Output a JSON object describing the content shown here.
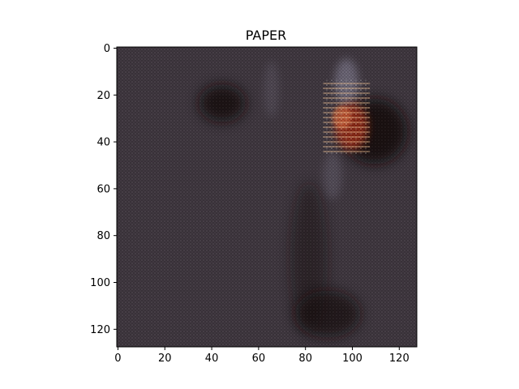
{
  "chart_data": {
    "type": "heatmap",
    "title": "PAPER",
    "xlabel": "",
    "ylabel": "",
    "xlim": [
      0,
      128
    ],
    "ylim": [
      128,
      0
    ],
    "x_ticks": [
      0,
      20,
      40,
      60,
      80,
      100,
      120
    ],
    "y_ticks": [
      0,
      20,
      40,
      60,
      80,
      100,
      120
    ],
    "image_shape": [
      128,
      128
    ],
    "colors": {
      "background": "#403840",
      "dark": "#140c10",
      "light": "#8e8aa0",
      "highlight_red": "#ac2d17",
      "highlight_orange": "#d86a3c"
    }
  }
}
